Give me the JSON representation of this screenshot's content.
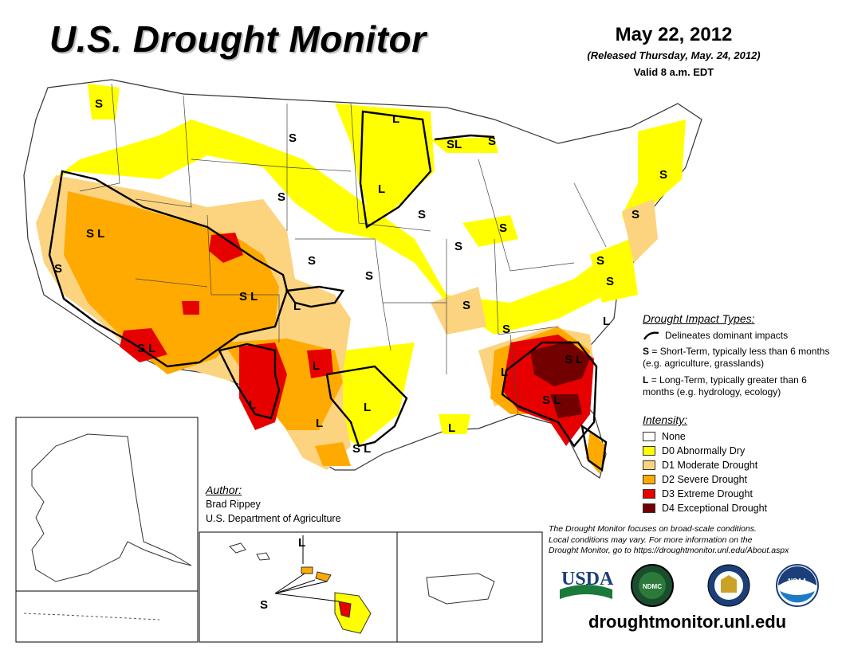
{
  "title": "U.S. Drought Monitor",
  "date": {
    "main": "May 22, 2012",
    "released": "(Released Thursday, May. 24, 2012)",
    "valid": "Valid 8 a.m. EDT"
  },
  "impact": {
    "title": "Drought Impact Types:",
    "delineates": "Delineates dominant impacts",
    "short_key": "S",
    "short_text": "= Short-Term, typically less than 6 months (e.g. agriculture, grasslands)",
    "long_key": "L",
    "long_text": "= Long-Term, typically greater than 6 months (e.g. hydrology, ecology)"
  },
  "intensity": {
    "title": "Intensity:",
    "items": [
      {
        "label": "None",
        "color": "#ffffff"
      },
      {
        "label": "D0 Abnormally Dry",
        "color": "#ffff00"
      },
      {
        "label": "D1 Moderate Drought",
        "color": "#fcd37f"
      },
      {
        "label": "D2 Severe Drought",
        "color": "#ffaa00"
      },
      {
        "label": "D3 Extreme Drought",
        "color": "#e60000"
      },
      {
        "label": "D4 Exceptional Drought",
        "color": "#730000"
      }
    ]
  },
  "author": {
    "label": "Author:",
    "name": "Brad Rippey",
    "org": "U.S. Department of Agriculture"
  },
  "note": {
    "line1": "The Drought Monitor focuses on broad-scale conditions.",
    "line2": "Local conditions may vary. For more information on the",
    "line3": "Drought Monitor, go to https://droughtmonitor.unl.edu/About.aspx"
  },
  "url": "droughtmonitor.unl.edu",
  "logos": {
    "usda": "USDA",
    "ndmc": "NDMC",
    "noaa": "NOAA"
  },
  "map_labels": {
    "s": "S",
    "l": "L",
    "sl": "SL",
    "s_l": "S L"
  }
}
